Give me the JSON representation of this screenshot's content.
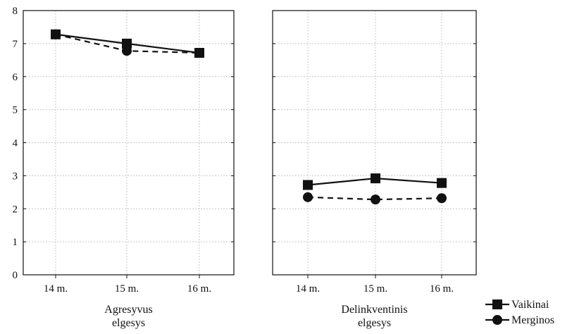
{
  "chart_data": {
    "type": "line",
    "ylim": [
      0,
      8
    ],
    "yticks": [
      "0",
      "1",
      "2",
      "3",
      "4",
      "5",
      "6",
      "7",
      "8"
    ],
    "grid": true,
    "legend_position": "bottom-right",
    "legend": [
      {
        "label": "Vaikinai",
        "marker": "square",
        "line": "solid"
      },
      {
        "label": "Merginos",
        "marker": "circle",
        "line": "dashed"
      }
    ],
    "panels": [
      {
        "title_lines": [
          "Agresyvus",
          "elgesys"
        ],
        "categories": [
          "14 m.",
          "15 m.",
          "16 m."
        ],
        "show_y_tick_labels": true,
        "series": [
          {
            "name": "Vaikinai",
            "values": [
              7.28,
              7.0,
              6.72
            ]
          },
          {
            "name": "Merginos",
            "values": [
              7.28,
              6.78,
              6.72
            ]
          }
        ]
      },
      {
        "title_lines": [
          "Delinkventinis",
          "elgesys"
        ],
        "categories": [
          "14 m.",
          "15 m.",
          "16 m."
        ],
        "show_y_tick_labels": false,
        "series": [
          {
            "name": "Vaikinai",
            "values": [
              2.72,
              2.92,
              2.78
            ]
          },
          {
            "name": "Merginos",
            "values": [
              2.35,
              2.28,
              2.32
            ]
          }
        ]
      }
    ],
    "colors": {
      "line": "#111111",
      "grid": "#c8c8c8",
      "axis": "#111111"
    }
  }
}
